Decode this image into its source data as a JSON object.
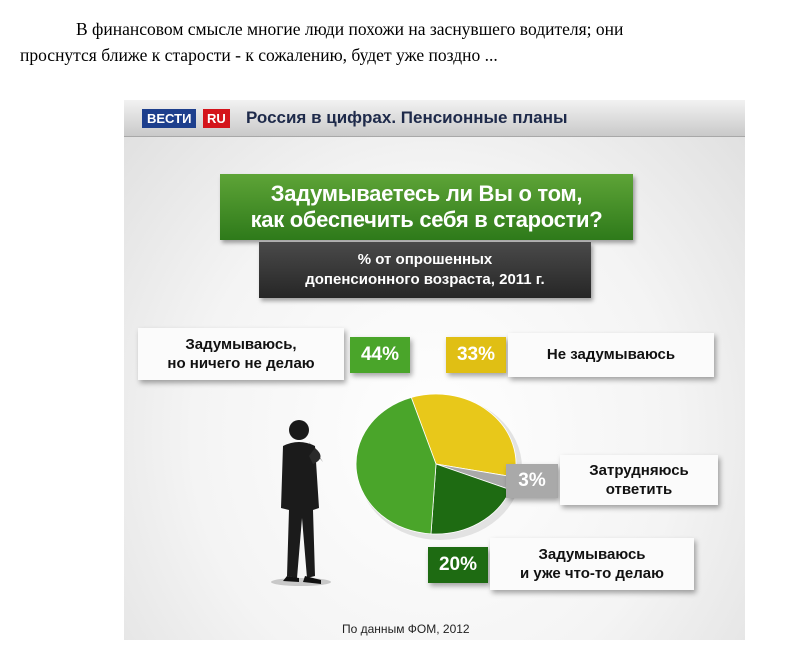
{
  "intro": {
    "line1": "В финансовом смысле многие люди похожи на заснувшего водителя; они",
    "line2": "проснутся ближе к старости - к сожалению, будет уже поздно ..."
  },
  "header": {
    "logo_vesti": "ВЕСТИ",
    "logo_ru": "RU",
    "title": "Россия в цифрах. Пенсионные планы"
  },
  "colors": {
    "green": "#4aa52a",
    "dark_green": "#1e6b12",
    "yellow": "#e8c81a",
    "gray": "#a9a9a9"
  },
  "chart_data": {
    "type": "pie",
    "title_line1": "Задумываетесь ли Вы о том,",
    "title_line2": "как обеспечить себя в старости?",
    "subtitle_line1": "% от опрошенных",
    "subtitle_line2": "допенсионного возраста, 2011 г.",
    "slices": [
      {
        "label_line1": "Не задумываюсь",
        "label_line2": "",
        "value": 33,
        "value_label": "33%",
        "color": "#e8c81a"
      },
      {
        "label_line1": "Затрудняюсь",
        "label_line2": "ответить",
        "value": 3,
        "value_label": "3%",
        "color": "#a9a9a9"
      },
      {
        "label_line1": "Задумываюсь",
        "label_line2": "и уже что-то делаю",
        "value": 20,
        "value_label": "20%",
        "color": "#1e6b12"
      },
      {
        "label_line1": "Задумываюсь,",
        "label_line2": "но ничего не делаю",
        "value": 44,
        "value_label": "44%",
        "color": "#4aa52a"
      }
    ],
    "source": "По данным ФОМ, 2012"
  }
}
